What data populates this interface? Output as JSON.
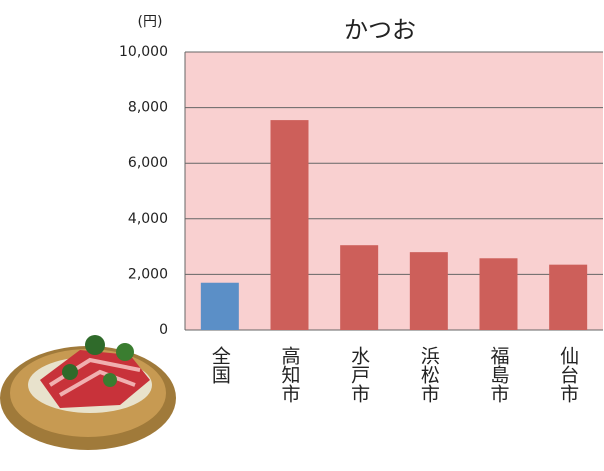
{
  "chart_data": {
    "type": "bar",
    "title": "かつお",
    "unit_label": "(円)",
    "categories": [
      "全国",
      "高知市",
      "水戸市",
      "浜松市",
      "福島市",
      "仙台市"
    ],
    "values": [
      1700,
      7550,
      3050,
      2800,
      2580,
      2350
    ],
    "colors": [
      "#5b8fc7",
      "#cd5f5a",
      "#cd5f5a",
      "#cd5f5a",
      "#cd5f5a",
      "#cd5f5a"
    ],
    "plot_background": "#f9d0d0",
    "ylim": [
      0,
      10000
    ],
    "yticks": [
      0,
      {
        "value": 2000,
        "label": "2,000"
      },
      {
        "value": 4000,
        "label": "4,000"
      },
      {
        "value": 6000,
        "label": "6,000"
      },
      {
        "value": 8000,
        "label": "8,000"
      },
      {
        "value": 10000,
        "label": "10,000"
      }
    ]
  }
}
